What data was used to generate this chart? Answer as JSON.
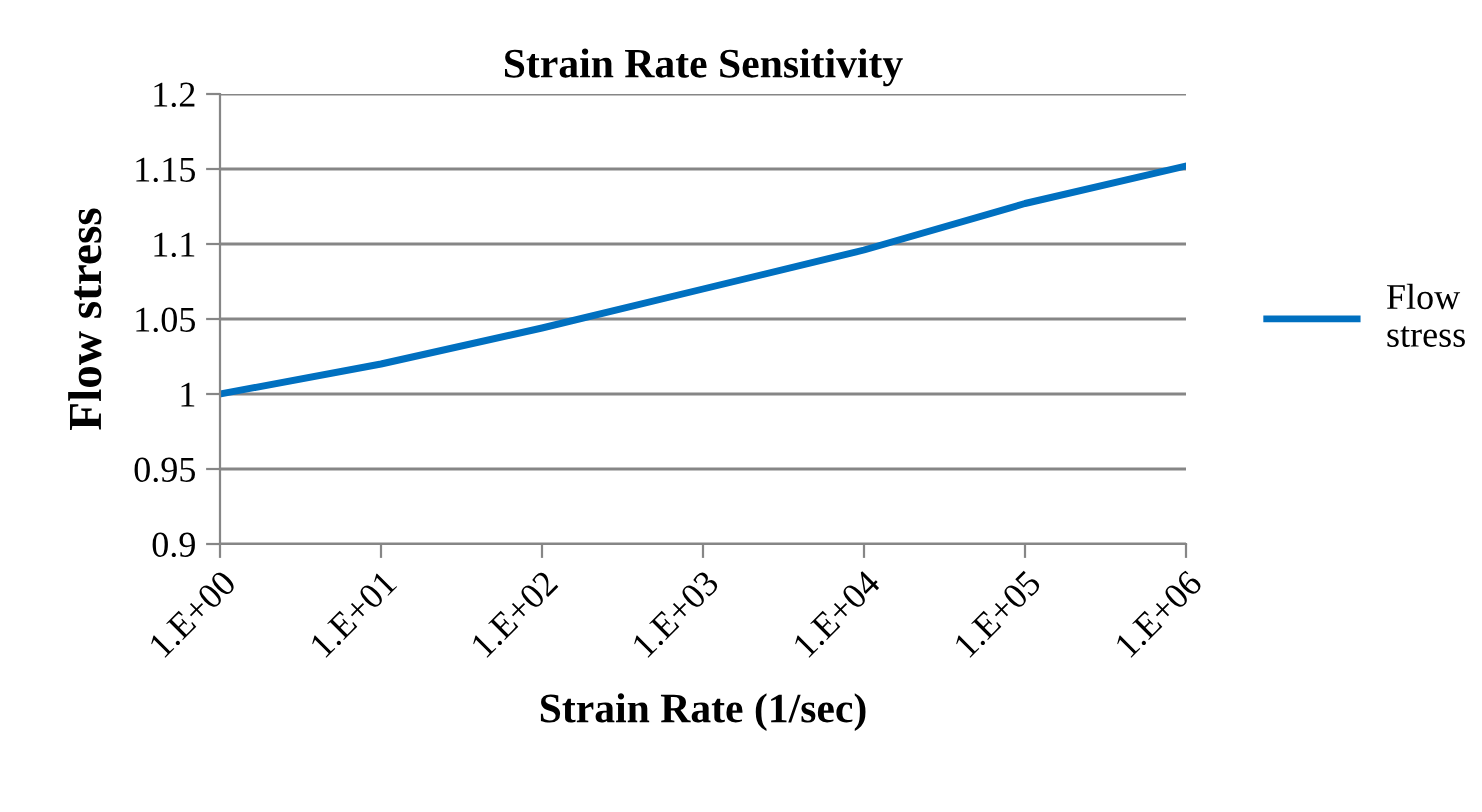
{
  "chart_data": {
    "type": "line",
    "title": "Strain Rate Sensitivity",
    "xlabel": "Strain Rate (1/sec)",
    "ylabel": "Flow stress",
    "categories": [
      "1.E+00",
      "1.E+01",
      "1.E+02",
      "1.E+03",
      "1.E+04",
      "1.E+05",
      "1.E+06"
    ],
    "series": [
      {
        "name": "Flow\nstress",
        "color": "#0070c0",
        "values": [
          1.0,
          1.02,
          1.044,
          1.07,
          1.096,
          1.127,
          1.152
        ]
      }
    ],
    "ylim": [
      0.9,
      1.2
    ],
    "yticks": [
      0.9,
      0.95,
      1,
      1.05,
      1.1,
      1.15,
      1.2
    ],
    "grid": "y",
    "legend": "right",
    "marker": "none"
  }
}
